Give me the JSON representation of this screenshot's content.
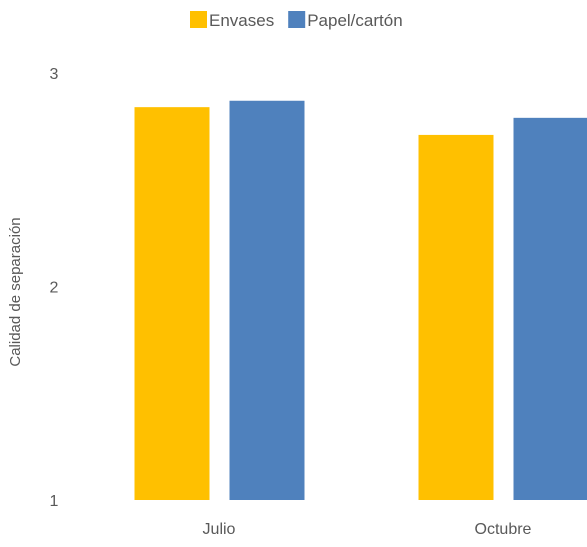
{
  "chart_data": {
    "type": "bar",
    "title": "",
    "xlabel": "",
    "ylabel": "Calidad de separación",
    "categories": [
      "Julio",
      "Octubre"
    ],
    "series": [
      {
        "name": "Envases",
        "color": "#FFC000",
        "values": [
          2.84,
          2.71
        ]
      },
      {
        "name": "Papel/cartón",
        "color": "#4F81BD",
        "values": [
          2.87,
          2.79
        ]
      }
    ],
    "ylim": [
      1,
      3
    ],
    "yticks": [
      "1",
      "2",
      "3"
    ],
    "grid": false,
    "legend_position": "top"
  }
}
